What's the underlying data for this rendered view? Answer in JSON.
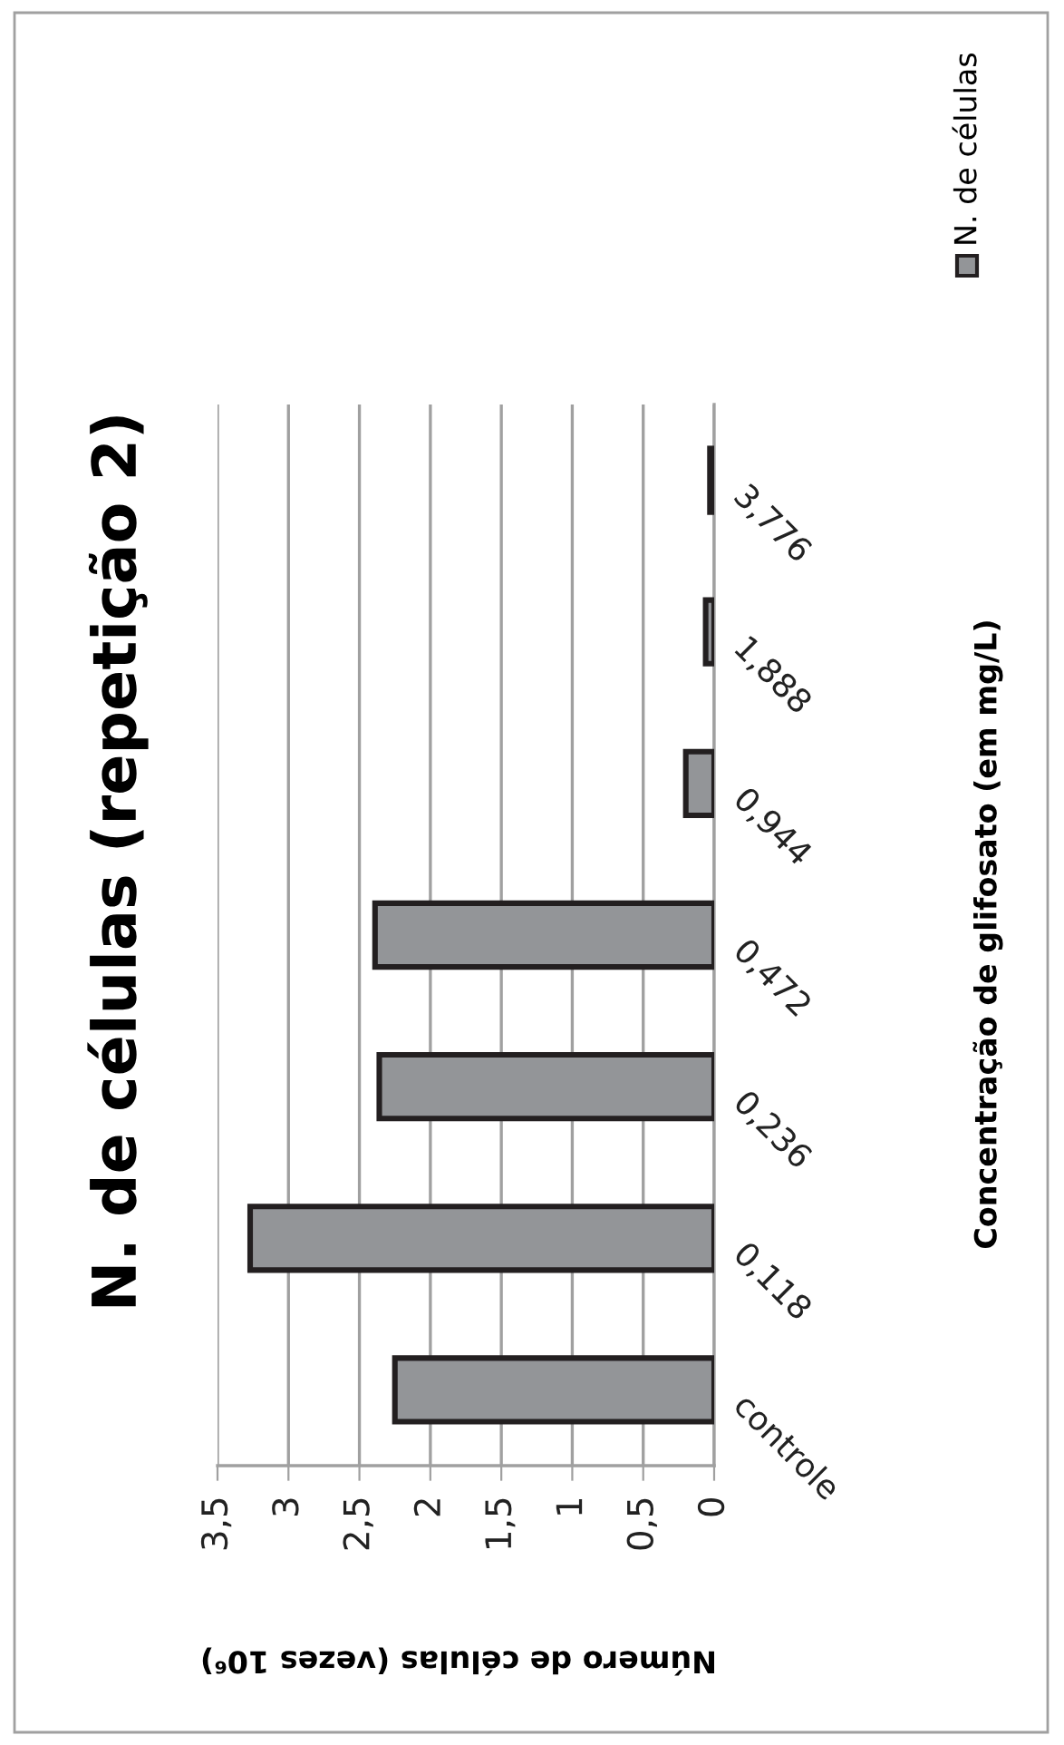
{
  "chart_data": {
    "type": "bar",
    "orientation": "horizontal",
    "title": "N. de células (repetição 2)",
    "xlabel": "Número de células (vezes 10⁶)",
    "ylabel": "Concentração de glifosato (em mg/L)",
    "categories": [
      "3,776",
      "1,888",
      "0,944",
      "0,472",
      "0,236",
      "0,118",
      "controle"
    ],
    "series": [
      {
        "name": "N. de células",
        "color": "#939598",
        "values": [
          0.03,
          0.06,
          0.2,
          2.39,
          2.36,
          3.27,
          2.25
        ]
      }
    ],
    "xlim": [
      3.5,
      0
    ],
    "xticks": [
      {
        "value": 0,
        "label": "0"
      },
      {
        "value": 0.5,
        "label": "0,5"
      },
      {
        "value": 1,
        "label": "1"
      },
      {
        "value": 1.5,
        "label": "1,5"
      },
      {
        "value": 2,
        "label": "2"
      },
      {
        "value": 2.5,
        "label": "2,5"
      },
      {
        "value": 3,
        "label": "3"
      },
      {
        "value": 3.5,
        "label": "3,5"
      }
    ],
    "grid": "x",
    "legend": "top right"
  }
}
